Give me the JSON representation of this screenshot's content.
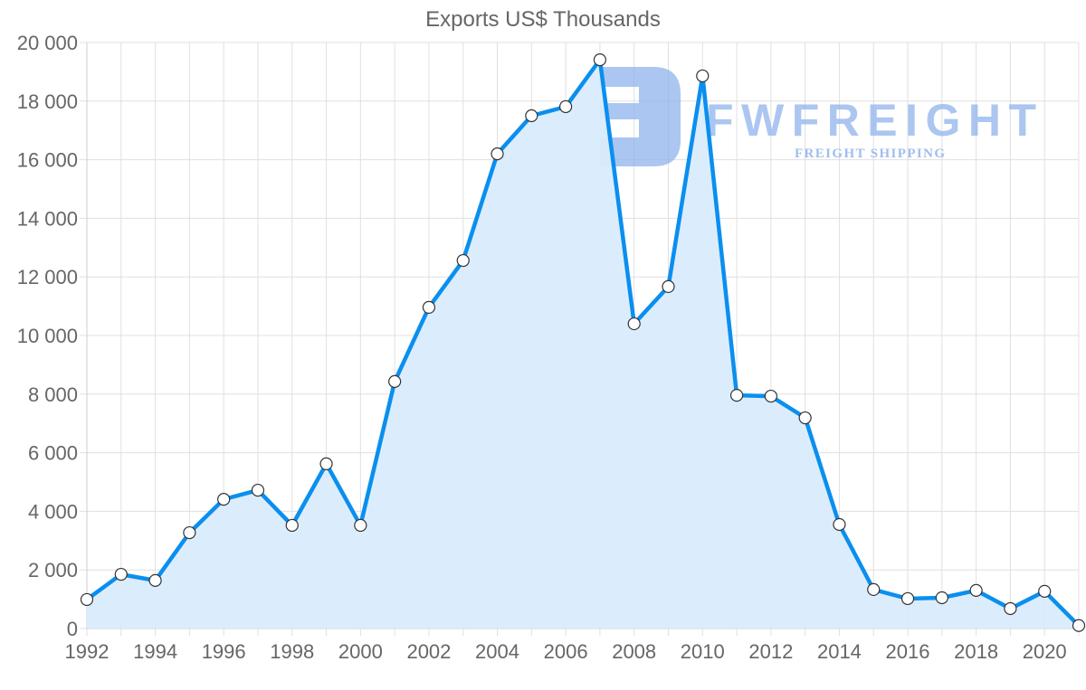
{
  "title": "Exports US$ Thousands",
  "watermark": {
    "brand": "FWFREIGHT",
    "tagline": "FREIGHT SHIPPING",
    "color": "#8fb3ec"
  },
  "colors": {
    "line": "#0a8fef",
    "fill": "#d9ecfc",
    "grid": "#e0e0e0",
    "point_fill": "#ffffff",
    "point_stroke": "#333333",
    "text": "#666666"
  },
  "chart_data": {
    "type": "area",
    "title": "Exports US$ Thousands",
    "xlabel": "",
    "ylabel": "",
    "ylim": [
      0,
      20000
    ],
    "grid": true,
    "legend": "none",
    "y_ticks": [
      "0",
      "2 000",
      "4 000",
      "6 000",
      "8 000",
      "10 000",
      "12 000",
      "14 000",
      "16 000",
      "18 000",
      "20 000"
    ],
    "x_tick_labels": [
      "1992",
      "1994",
      "1996",
      "1998",
      "2000",
      "2002",
      "2004",
      "2006",
      "2008",
      "2010",
      "2012",
      "2014",
      "2016",
      "2018",
      "2020"
    ],
    "x": [
      1992,
      1993,
      1994,
      1995,
      1996,
      1997,
      1998,
      1999,
      2000,
      2001,
      2002,
      2003,
      2004,
      2005,
      2006,
      2007,
      2008,
      2009,
      2010,
      2011,
      2012,
      2013,
      2014,
      2015,
      2016,
      2017,
      2018,
      2019,
      2020,
      2021
    ],
    "series": [
      {
        "name": "Exports",
        "values": [
          990,
          1850,
          1640,
          3270,
          4410,
          4720,
          3520,
          5620,
          3520,
          8430,
          10960,
          12560,
          16200,
          17500,
          17810,
          19410,
          10400,
          11670,
          18860,
          7960,
          7930,
          7190,
          3550,
          1330,
          1020,
          1050,
          1300,
          680,
          1270,
          100
        ]
      }
    ]
  }
}
